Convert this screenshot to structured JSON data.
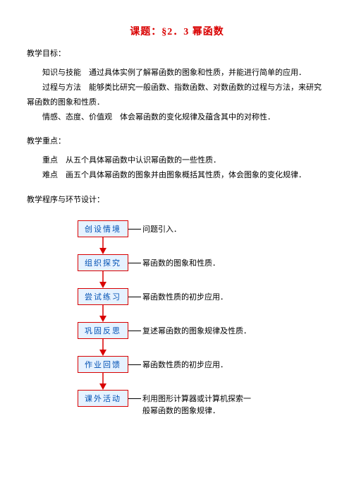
{
  "title": "课题：§2．3 幂函数",
  "goals_header": "教学目标：",
  "goal1_label": "知识与技能",
  "goal1_text": "通过具体实例了解幂函数的图象和性质，并能进行简单的应用．",
  "goal2_label": "过程与方法",
  "goal2_text": "能够类比研究一般函数、指数函数、对数函数的过程与方法，来研究幂函数的图象和性质．",
  "goal3_label": "情感、态度、价值观",
  "goal3_text": "体会幂函数的变化规律及蕴含其中的对称性．",
  "focus_header": "教学重点：",
  "focus1_label": "重点",
  "focus1_text": "从五个具体幂函数中认识幂函数的一些性质．",
  "focus2_label": "难点",
  "focus2_text": "画五个具体幂函数的图象并由图象概括其性质，体会图象的变化规律．",
  "proc_header": "教学程序与环节设计：",
  "nodes": [
    {
      "label": "创设情境",
      "desc": "问题引入．"
    },
    {
      "label": "组织探究",
      "desc": "幂函数的图象和性质．"
    },
    {
      "label": "尝试练习",
      "desc": "幂函数性质的初步应用．"
    },
    {
      "label": "巩固反思",
      "desc": "复述幂函数的图象规律及性质．"
    },
    {
      "label": "作业回馈",
      "desc": "幂函数性质的初步应用．"
    },
    {
      "label": "课外活动",
      "desc": "利用图形计算器或计算机探索一般幂函数的图象规律．",
      "multi": true,
      "line2": "般幂函数的图象规律．"
    }
  ],
  "colors": {
    "title": "#d90000",
    "box_border": "#d90000",
    "box_fill": "#e6f2ff",
    "box_text": "#0050b3",
    "arrow": "#d90000"
  }
}
